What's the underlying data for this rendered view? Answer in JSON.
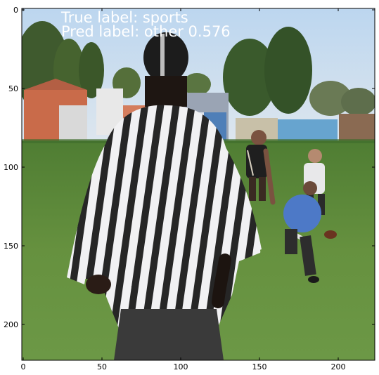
{
  "figure": {
    "image_extent": {
      "width": 224,
      "height": 224
    },
    "x_ticks": [
      0,
      50,
      100,
      150,
      200
    ],
    "y_ticks": [
      0,
      50,
      100,
      150,
      200
    ],
    "x_tick_labels": [
      "0",
      "50",
      "100",
      "150",
      "200"
    ],
    "y_tick_labels": [
      "0",
      "50",
      "100",
      "150",
      "200"
    ]
  },
  "overlay": {
    "true_label": "True label: sports",
    "pred_label": "Pred label: other 0.576"
  },
  "scene": {
    "subject": "referee in black-and-white striped shirt seen from behind",
    "background": "flag football players on grass field, trees and buildings"
  },
  "colors": {
    "sky": "#c9dcee",
    "grass": "#5e8a3c",
    "stripe_dark": "#2b2b2b",
    "stripe_light": "#f1f1f3",
    "jersey_blue": "#4d79c7",
    "text_overlay": "#ffffff"
  }
}
